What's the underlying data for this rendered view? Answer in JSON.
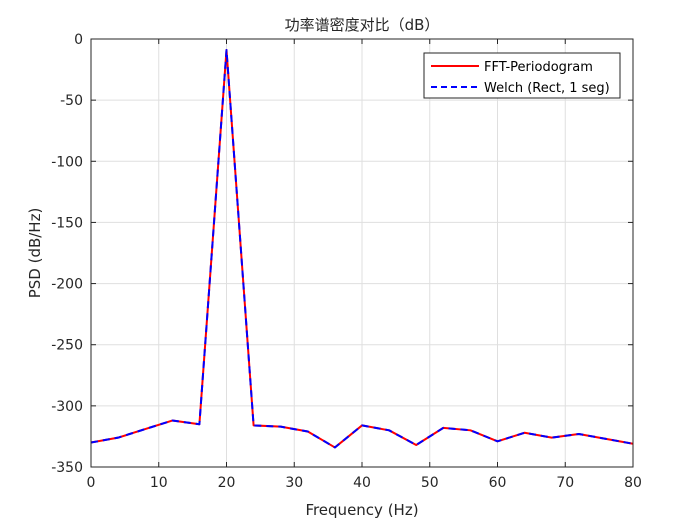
{
  "chart_data": {
    "type": "line",
    "title": "功率谱密度对比（dB）",
    "xlabel": "Frequency (Hz)",
    "ylabel": "PSD (dB/Hz)",
    "xlim": [
      0,
      80
    ],
    "ylim": [
      -350,
      0
    ],
    "xticks": [
      0,
      10,
      20,
      30,
      40,
      50,
      60,
      70,
      80
    ],
    "yticks": [
      -350,
      -300,
      -250,
      -200,
      -150,
      -100,
      -50,
      0
    ],
    "grid": true,
    "legend_position": "top-right",
    "x": [
      0,
      4,
      8,
      12,
      16,
      20,
      24,
      28,
      32,
      36,
      40,
      44,
      48,
      52,
      56,
      60,
      64,
      68,
      72,
      76,
      80
    ],
    "series": [
      {
        "name": "FFT-Periodogram",
        "color": "#ff0000",
        "style": "solid",
        "values": [
          -330,
          -326,
          -319,
          -312,
          -315,
          -9,
          -316,
          -317,
          -321,
          -334,
          -316,
          -320,
          -332,
          -318,
          -320,
          -329,
          -322,
          -326,
          -323,
          -327,
          -331
        ]
      },
      {
        "name": "Welch (Rect, 1 seg)",
        "color": "#0000ff",
        "style": "dashed",
        "values": [
          -330,
          -326,
          -319,
          -312,
          -315,
          -9,
          -316,
          -317,
          -321,
          -334,
          -316,
          -320,
          -332,
          -318,
          -320,
          -329,
          -322,
          -326,
          -323,
          -327,
          -331
        ]
      }
    ]
  }
}
